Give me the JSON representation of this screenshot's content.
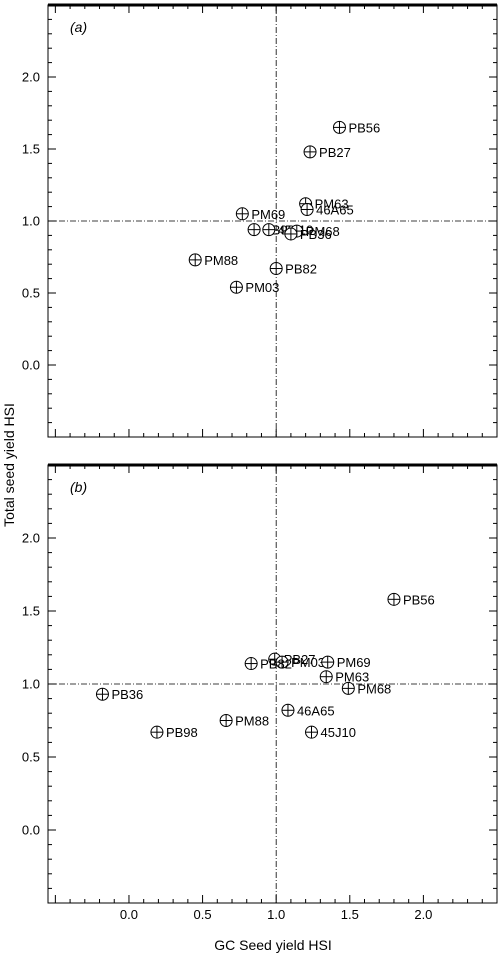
{
  "figure": {
    "xlabel": "GC Seed yield HSI",
    "ylabel": "Total seed yield HSI"
  },
  "chart_data": [
    {
      "type": "scatter",
      "panel_label": "(a)",
      "xlim": [
        -0.55,
        2.5
      ],
      "ylim": [
        -0.5,
        2.5
      ],
      "x_ticks": [
        0.0,
        0.5,
        1.0,
        1.5,
        2.0
      ],
      "x_tick_labels": [
        "",
        "",
        "",
        "",
        ""
      ],
      "y_ticks": [
        0.0,
        0.5,
        1.0,
        1.5,
        2.0
      ],
      "y_tick_labels": [
        "0.0",
        "0.5",
        "1.0",
        "1.5",
        "2.0"
      ],
      "reference_lines": {
        "x": 1.0,
        "y": 1.0
      },
      "points": [
        {
          "label": "PB56",
          "x": 1.43,
          "y": 1.65
        },
        {
          "label": "PB27",
          "x": 1.23,
          "y": 1.48
        },
        {
          "label": "PM63",
          "x": 1.2,
          "y": 1.12
        },
        {
          "label": "46A65",
          "x": 1.21,
          "y": 1.08
        },
        {
          "label": "PM69",
          "x": 0.77,
          "y": 1.05
        },
        {
          "label": "PB98",
          "x": 0.85,
          "y": 0.94
        },
        {
          "label": "45J10",
          "x": 0.95,
          "y": 0.94
        },
        {
          "label": "PM68",
          "x": 1.14,
          "y": 0.93
        },
        {
          "label": "PB36",
          "x": 1.1,
          "y": 0.91
        },
        {
          "label": "PM88",
          "x": 0.45,
          "y": 0.73
        },
        {
          "label": "PB82",
          "x": 1.0,
          "y": 0.67
        },
        {
          "label": "PM03",
          "x": 0.73,
          "y": 0.54
        }
      ]
    },
    {
      "type": "scatter",
      "panel_label": "(b)",
      "xlim": [
        -0.55,
        2.5
      ],
      "ylim": [
        -0.5,
        2.5
      ],
      "x_ticks": [
        0.0,
        0.5,
        1.0,
        1.5,
        2.0
      ],
      "x_tick_labels": [
        "0.0",
        "0.5",
        "1.0",
        "1.5",
        "2.0"
      ],
      "y_ticks": [
        0.0,
        0.5,
        1.0,
        1.5,
        2.0
      ],
      "y_tick_labels": [
        "0.0",
        "0.5",
        "1.0",
        "1.5",
        "2.0"
      ],
      "reference_lines": {
        "x": 1.0,
        "y": 1.0
      },
      "points": [
        {
          "label": "PB56",
          "x": 1.8,
          "y": 1.58
        },
        {
          "label": "PB27",
          "x": 0.99,
          "y": 1.17
        },
        {
          "label": "PM03",
          "x": 1.04,
          "y": 1.15
        },
        {
          "label": "PM69",
          "x": 1.35,
          "y": 1.15
        },
        {
          "label": "PB82",
          "x": 0.83,
          "y": 1.14
        },
        {
          "label": "PM63",
          "x": 1.34,
          "y": 1.05
        },
        {
          "label": "PM68",
          "x": 1.49,
          "y": 0.97
        },
        {
          "label": "PB36",
          "x": -0.18,
          "y": 0.93
        },
        {
          "label": "46A65",
          "x": 1.08,
          "y": 0.82
        },
        {
          "label": "PM88",
          "x": 0.66,
          "y": 0.75
        },
        {
          "label": "PB98",
          "x": 0.19,
          "y": 0.67
        },
        {
          "label": "45J10",
          "x": 1.24,
          "y": 0.67
        }
      ]
    }
  ]
}
